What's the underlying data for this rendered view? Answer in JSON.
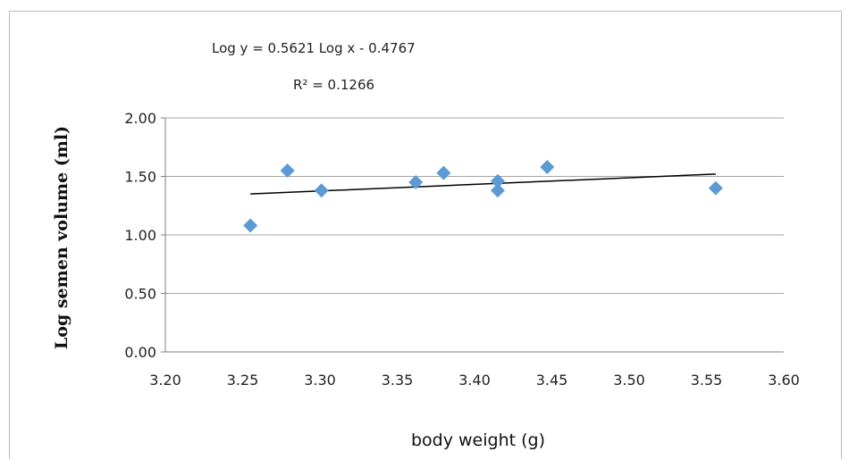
{
  "chart_data": {
    "type": "scatter",
    "title": "",
    "xlabel": "body weight (g)",
    "ylabel": "Log semen volume (ml)",
    "xlim": [
      3.2,
      3.6
    ],
    "ylim": [
      0.0,
      2.0
    ],
    "x_ticks": [
      "3.20",
      "3.25",
      "3.30",
      "3.35",
      "3.40",
      "3.45",
      "3.50",
      "3.55",
      "3.60"
    ],
    "y_ticks": [
      "0.00",
      "0.50",
      "1.00",
      "1.50",
      "2.00"
    ],
    "grid": "horizontal",
    "marker": "diamond",
    "colors": {
      "points": "#5b9bd5",
      "trendline": "#000000",
      "grid": "#a6a6a6"
    },
    "points": [
      {
        "x": 3.255,
        "y": 1.08
      },
      {
        "x": 3.279,
        "y": 1.55
      },
      {
        "x": 3.301,
        "y": 1.38
      },
      {
        "x": 3.362,
        "y": 1.45
      },
      {
        "x": 3.38,
        "y": 1.53
      },
      {
        "x": 3.415,
        "y": 1.46
      },
      {
        "x": 3.415,
        "y": 1.38
      },
      {
        "x": 3.447,
        "y": 1.58
      },
      {
        "x": 3.556,
        "y": 1.4
      }
    ],
    "trendline": {
      "type": "linear",
      "x_range": [
        3.255,
        3.556
      ],
      "y_values": [
        1.35,
        1.52
      ],
      "equation": "Log y = 0.5621 Log x - 0.4767",
      "r_squared": "R² = 0.1266"
    }
  }
}
